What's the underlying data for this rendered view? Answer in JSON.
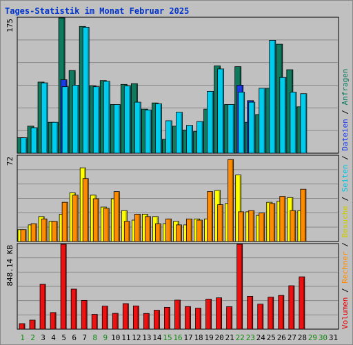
{
  "chart_data": {
    "title": "Tages-Statistik im Monat Februar 2025",
    "type": "bar",
    "days": [
      1,
      2,
      3,
      4,
      5,
      6,
      7,
      8,
      9,
      10,
      11,
      12,
      13,
      14,
      15,
      16,
      17,
      18,
      19,
      20,
      21,
      22,
      23,
      24,
      25,
      26,
      27,
      28,
      29,
      30,
      31
    ],
    "weekend_days": [
      1,
      2,
      8,
      9,
      15,
      16,
      22,
      23,
      29,
      30
    ],
    "top_panel": {
      "ymax_label": "175",
      "ymax": 175,
      "series": [
        {
          "name": "Anfragen",
          "color": "#0f7a5e",
          "values": [
            20,
            35,
            92,
            40,
            175,
            107,
            164,
            87,
            94,
            63,
            89,
            90,
            57,
            65,
            18,
            35,
            30,
            28,
            57,
            113,
            63,
            112,
            40,
            50,
            84,
            141,
            108,
            60,
            0,
            0,
            0
          ]
        },
        {
          "name": "Dateien",
          "color": "#1a3ce8",
          "values": [
            0,
            0,
            0,
            0,
            95,
            0,
            0,
            0,
            0,
            0,
            0,
            0,
            0,
            0,
            0,
            0,
            0,
            0,
            0,
            0,
            0,
            88,
            68,
            0,
            0,
            0,
            0,
            0,
            0,
            0,
            0
          ]
        },
        {
          "name": "Seiten",
          "color": "#00ccee",
          "values": [
            20,
            33,
            91,
            40,
            86,
            88,
            163,
            86,
            93,
            63,
            87,
            66,
            56,
            64,
            42,
            53,
            36,
            41,
            80,
            109,
            63,
            79,
            66,
            84,
            146,
            98,
            79,
            77,
            0,
            0,
            0
          ]
        }
      ]
    },
    "mid_panel": {
      "ymax_label": "72",
      "ymax": 72,
      "series": [
        {
          "name": "Besuche",
          "color": "#ffff00",
          "values": [
            10,
            14,
            21,
            17,
            23,
            41,
            62,
            39,
            29,
            36,
            26,
            18,
            23,
            21,
            15,
            17,
            14,
            19,
            19,
            43,
            32,
            56,
            25,
            22,
            33,
            34,
            37,
            26,
            0,
            0,
            0
          ]
        },
        {
          "name": "Rechner",
          "color": "#ff8c00",
          "values": [
            10,
            15,
            19,
            17,
            33,
            39,
            53,
            36,
            28,
            42,
            17,
            23,
            21,
            15,
            19,
            14,
            19,
            18,
            42,
            31,
            69,
            25,
            26,
            24,
            32,
            38,
            26,
            44,
            0,
            0,
            0
          ]
        }
      ]
    },
    "bottom_panel": {
      "ymax_label": "848.14 KB",
      "ymax": 848.14,
      "series": [
        {
          "name": "Volumen",
          "color": "#ee1111",
          "values": [
            55,
            90,
            448,
            166,
            848,
            400,
            287,
            148,
            230,
            158,
            255,
            232,
            157,
            189,
            218,
            290,
            226,
            210,
            300,
            313,
            224,
            848,
            328,
            250,
            320,
            337,
            434,
            523,
            0,
            0,
            0
          ]
        }
      ]
    },
    "side_legend": [
      {
        "label": "Volumen",
        "color": "#dd0000"
      },
      {
        "label": "Rechner",
        "color": "#ff8c00"
      },
      {
        "label": "Besuche",
        "color": "#cccc00"
      },
      {
        "label": "Seiten",
        "color": "#00c0e0"
      },
      {
        "label": "Dateien",
        "color": "#1a3ce8"
      },
      {
        "label": "Anfragen",
        "color": "#0f7a5e"
      }
    ],
    "separator": " / ",
    "x_label_color": "#000000",
    "x_label_weekend_color": "#118811"
  }
}
